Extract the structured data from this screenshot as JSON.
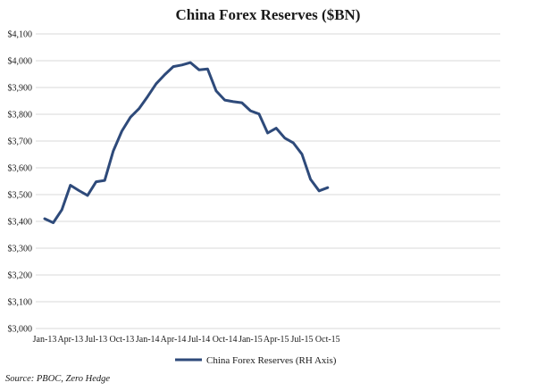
{
  "chart_data": {
    "type": "line",
    "title": "China Forex Reserves ($BN)",
    "ylim": [
      3000,
      4100
    ],
    "grid": true,
    "legend_placement": "bottom",
    "y_ticks": [
      "$3,000",
      "$3,100",
      "$3,200",
      "$3,300",
      "$3,400",
      "$3,500",
      "$3,600",
      "$3,700",
      "$3,800",
      "$3,900",
      "$4,000",
      "$4,100"
    ],
    "x_ticks": [
      "Jan-13",
      "Apr-13",
      "Jul-13",
      "Oct-13",
      "Jan-14",
      "Apr-14",
      "Jul-14",
      "Oct-14",
      "Jan-15",
      "Apr-15",
      "Jul-15",
      "Oct-15"
    ],
    "x": [
      "Jan-13",
      "Feb-13",
      "Mar-13",
      "Apr-13",
      "May-13",
      "Jun-13",
      "Jul-13",
      "Aug-13",
      "Sep-13",
      "Oct-13",
      "Nov-13",
      "Dec-13",
      "Jan-14",
      "Feb-14",
      "Mar-14",
      "Apr-14",
      "May-14",
      "Jun-14",
      "Jul-14",
      "Aug-14",
      "Sep-14",
      "Oct-14",
      "Nov-14",
      "Dec-14",
      "Jan-15",
      "Feb-15",
      "Mar-15",
      "Apr-15",
      "May-15",
      "Jun-15",
      "Jul-15",
      "Aug-15",
      "Sep-15",
      "Oct-15"
    ],
    "series": [
      {
        "name": "China Forex Reserves (RH Axis)",
        "color": "#2e4a7a",
        "values": [
          3410,
          3395,
          3443,
          3535,
          3515,
          3497,
          3548,
          3553,
          3663,
          3737,
          3789,
          3821,
          3866,
          3914,
          3948,
          3978,
          3984,
          3993,
          3966,
          3969,
          3887,
          3853,
          3847,
          3843,
          3813,
          3801,
          3730,
          3748,
          3711,
          3693,
          3651,
          3557,
          3514,
          3526
        ]
      }
    ]
  },
  "source": "Source: PBOC, Zero Hedge"
}
